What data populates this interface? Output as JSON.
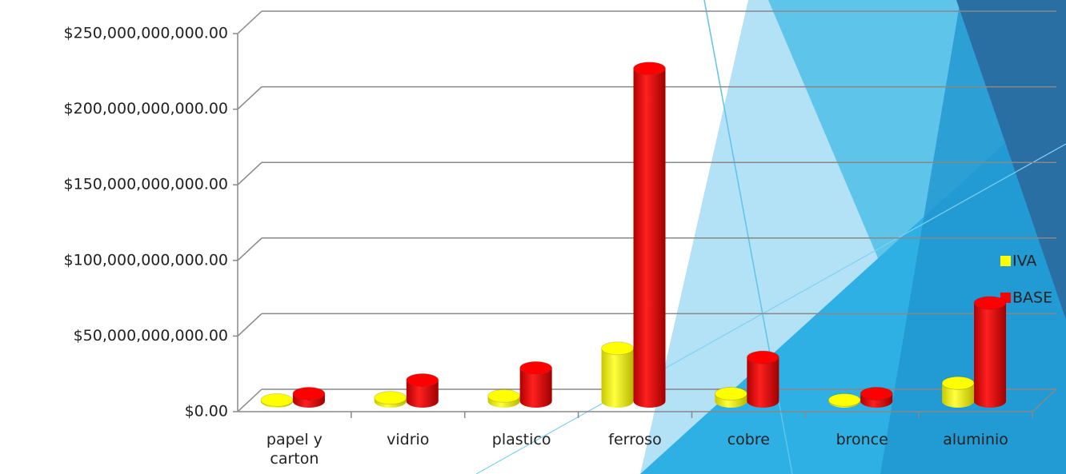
{
  "chart_data": {
    "type": "bar3d",
    "categories": [
      "papel y carton",
      "vidrio",
      "plastico",
      "ferroso",
      "cobre",
      "bronce",
      "aluminio"
    ],
    "series": [
      {
        "name": "IVA",
        "color": "#ffff00",
        "values": [
          800000000,
          2300000000,
          3500000000,
          35000000000,
          5000000000,
          800000000,
          12000000000
        ]
      },
      {
        "name": "BASE",
        "color": "#ff0000",
        "values": [
          5000000000,
          14000000000,
          22000000000,
          220000000000,
          29000000000,
          5000000000,
          65000000000
        ]
      }
    ],
    "ylim": [
      0,
      250000000000
    ],
    "yticks": [
      {
        "value": 0,
        "label": "$0.00"
      },
      {
        "value": 50000000000,
        "label": "$50,000,000,000.00"
      },
      {
        "value": 100000000000,
        "label": "$100,000,000,000.00"
      },
      {
        "value": 150000000000,
        "label": "$150,000,000,000.00"
      },
      {
        "value": 200000000000,
        "label": "$200,000,000,000.00"
      },
      {
        "value": 250000000000,
        "label": "$250,000,000,000.00"
      }
    ],
    "grid": true,
    "legend": "right"
  }
}
